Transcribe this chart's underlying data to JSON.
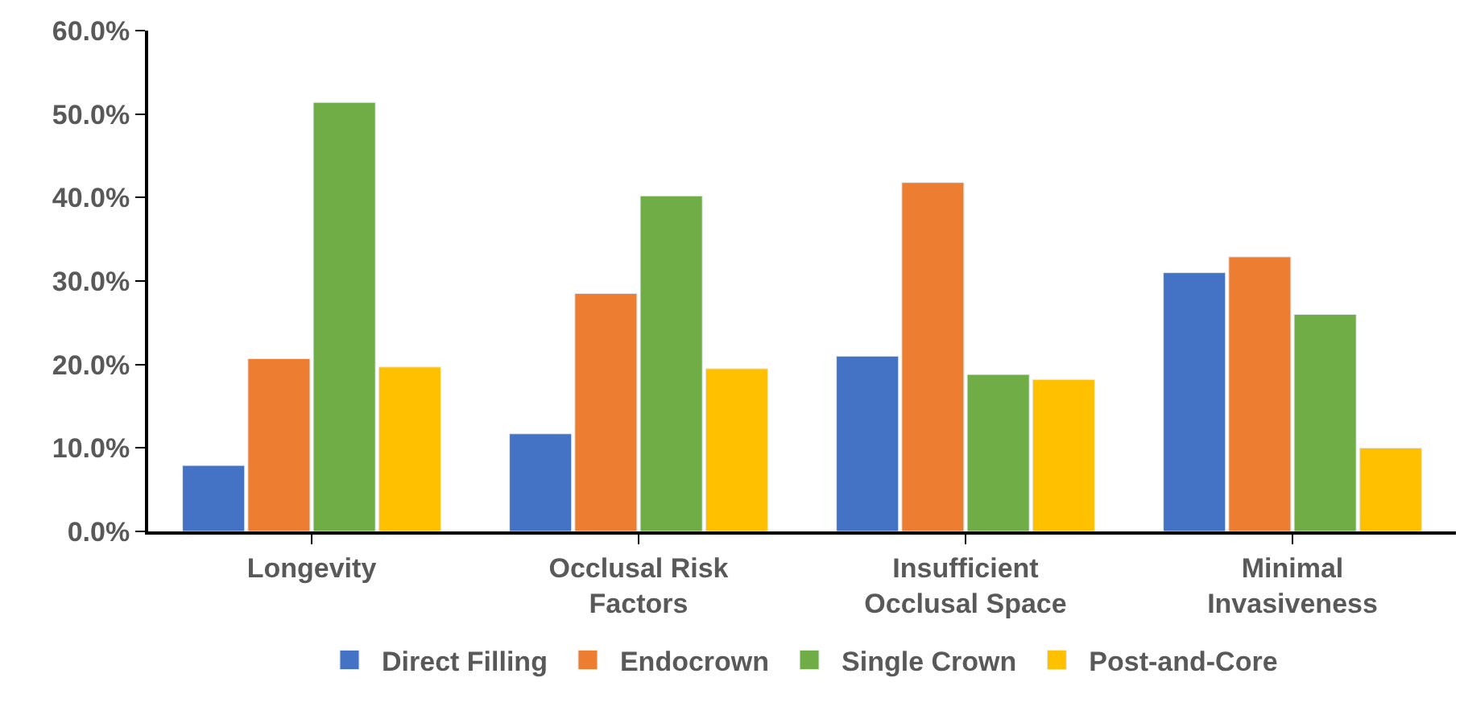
{
  "chart_data": {
    "type": "bar",
    "categories": [
      "Longevity",
      "Occlusal Risk Factors",
      "Insufficient Occlusal Space",
      "Minimal Invasiveness"
    ],
    "series": [
      {
        "name": "Direct Filling",
        "color": "#4472c4",
        "values": [
          7.9,
          11.7,
          21.0,
          31.0
        ]
      },
      {
        "name": "Endocrown",
        "color": "#ed7d31",
        "values": [
          20.7,
          28.5,
          41.8,
          32.9
        ]
      },
      {
        "name": "Single Crown",
        "color": "#70ad47",
        "values": [
          51.4,
          40.2,
          18.8,
          26.0
        ]
      },
      {
        "name": "Post-and-Core",
        "color": "#ffc000",
        "values": [
          19.7,
          19.5,
          18.2,
          10.0
        ]
      }
    ],
    "ylim": [
      0,
      60
    ],
    "yticks": [
      {
        "value": 0,
        "label": "0.0%"
      },
      {
        "value": 10,
        "label": "10.0%"
      },
      {
        "value": 20,
        "label": "20.0%"
      },
      {
        "value": 30,
        "label": "30.0%"
      },
      {
        "value": 40,
        "label": "40.0%"
      },
      {
        "value": 50,
        "label": "50.0%"
      },
      {
        "value": 60,
        "label": "60.0%"
      }
    ],
    "legend": "bottom"
  }
}
